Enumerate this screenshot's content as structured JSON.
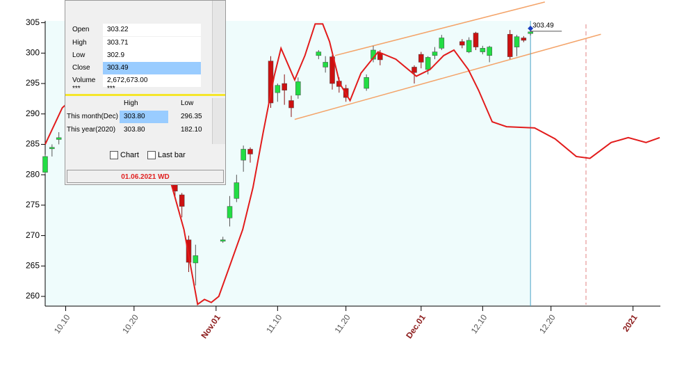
{
  "chart_data": {
    "type": "candlestick",
    "x": [
      7,
      8,
      9,
      26,
      27,
      28,
      29,
      33,
      34,
      35,
      36,
      37,
      40,
      41,
      42,
      43,
      44,
      47,
      48,
      49,
      50,
      51,
      54,
      55,
      56,
      61,
      62,
      63,
      64,
      65,
      68,
      69,
      70,
      71,
      72,
      75,
      76,
      77,
      78
    ],
    "open": [
      280.4,
      284.4,
      285.8,
      278.4,
      276.7,
      269.3,
      265.5,
      269.2,
      272.9,
      276.1,
      282.4,
      284.2,
      298.7,
      293.5,
      295.0,
      292.2,
      293.1,
      299.6,
      297.7,
      299.4,
      295.4,
      294.2,
      294.2,
      299.0,
      300.0,
      297.7,
      299.8,
      297.3,
      299.6,
      300.8,
      301.9,
      300.2,
      303.3,
      300.2,
      299.6,
      303.1,
      301.0,
      302.5,
      303.22
    ],
    "high": [
      283.3,
      285.0,
      287.0,
      279.0,
      277.0,
      270.0,
      268.5,
      269.8,
      276.5,
      280.0,
      284.8,
      284.5,
      299.5,
      295.0,
      296.5,
      293.0,
      296.0,
      300.5,
      299.5,
      299.7,
      296.0,
      294.8,
      296.5,
      301.2,
      300.5,
      298.0,
      300.2,
      299.5,
      301.0,
      303.0,
      302.3,
      302.6,
      303.5,
      301.2,
      301.2,
      303.8,
      303.0,
      302.8,
      303.71
    ],
    "low": [
      280.1,
      283.0,
      285.0,
      276.5,
      273.0,
      264.0,
      261.8,
      268.8,
      271.5,
      275.5,
      280.5,
      282.0,
      291.0,
      292.0,
      291.5,
      289.5,
      292.5,
      299.0,
      296.8,
      294.0,
      293.5,
      292.0,
      293.8,
      298.5,
      298.0,
      295.0,
      297.5,
      296.5,
      299.0,
      300.5,
      300.8,
      300.0,
      300.5,
      299.8,
      298.5,
      299.0,
      299.5,
      301.8,
      302.9
    ],
    "close": [
      283.0,
      284.5,
      286.1,
      277.3,
      274.8,
      265.6,
      266.7,
      269.3,
      274.8,
      278.7,
      284.2,
      283.4,
      291.8,
      294.7,
      293.9,
      291.0,
      295.3,
      300.2,
      298.5,
      295.0,
      294.5,
      292.7,
      296.0,
      300.5,
      298.9,
      296.8,
      298.5,
      299.3,
      300.2,
      302.5,
      301.3,
      302.1,
      301.0,
      300.8,
      301.0,
      299.4,
      302.7,
      302.1,
      303.49
    ],
    "up_color": "#22dd44",
    "down_color": "#cc1111",
    "ylim": [
      258.4,
      305.3
    ],
    "yticks": [
      260,
      265,
      270,
      275,
      280,
      285,
      290,
      295,
      300,
      305
    ],
    "xlim": [
      7,
      97
    ],
    "xticks": [
      {
        "value": 10,
        "label": "10.10",
        "color": "#555555"
      },
      {
        "value": 20,
        "label": "10.20",
        "color": "#555555"
      },
      {
        "value": 32,
        "label": "Nov.01",
        "color": "#8b1a1a"
      },
      {
        "value": 41,
        "label": "11.10",
        "color": "#555555"
      },
      {
        "value": 51,
        "label": "11.20",
        "color": "#555555"
      },
      {
        "value": 62,
        "label": "Dec.01",
        "color": "#8b1a1a"
      },
      {
        "value": 71,
        "label": "12.10",
        "color": "#555555"
      },
      {
        "value": 81,
        "label": "12.20",
        "color": "#555555"
      },
      {
        "value": 93,
        "label": "2021",
        "color": "#8b1a1a"
      }
    ],
    "trend": {
      "color": "#e21b1b",
      "x": [
        7.0,
        9.5,
        11.5,
        13.6,
        16.6,
        20.7,
        23.2,
        24.7,
        27.3,
        29.3,
        30.3,
        31.3,
        32.4,
        33.9,
        35.9,
        37.4,
        38.9,
        40.5,
        41.5,
        43.5,
        45.0,
        46.5,
        47.6,
        48.6,
        50.1,
        51.6,
        53.2,
        55.7,
        58.3,
        61.3,
        63.3,
        65.3,
        66.8,
        68.9,
        70.4,
        72.4,
        74.5,
        78.6,
        81.6,
        84.7,
        86.7,
        89.8,
        92.3,
        94.9,
        96.9
      ],
      "y": [
        285,
        291,
        293,
        294,
        292,
        288,
        284,
        281.5,
        271,
        258.7,
        259.5,
        259,
        260,
        264.7,
        271,
        277.9,
        287,
        296.2,
        300.8,
        295.6,
        299.6,
        304.8,
        304.8,
        301.9,
        295,
        292.2,
        296.7,
        300.2,
        299,
        296.2,
        297.3,
        299.6,
        300.5,
        297.3,
        293.9,
        288.7,
        287.9,
        287.7,
        285.9,
        283,
        282.7,
        285.3,
        286.1,
        285.3,
        286.1
      ]
    },
    "channel": {
      "color": "#f4a46a",
      "upper": {
        "x": [
          49.4,
          80.1
        ],
        "y": [
          299.6,
          308.4
        ]
      },
      "lower": {
        "x": [
          43.5,
          88.3
        ],
        "y": [
          289.1,
          303.1
        ]
      }
    }
  },
  "info_panel": {
    "open_label": "Open",
    "high_label": "High",
    "low_label": "Low",
    "close_label": "Close",
    "volume_label": "Volume",
    "volume": "2,672,673.00",
    "more_label": "***",
    "more_value": "***",
    "header": [
      "High",
      "Low"
    ],
    "rows": [
      {
        "label": "This month(Dec)",
        "high": "303.80",
        "low": "296.35"
      },
      {
        "label": "This year(2020)",
        "high": "303.80",
        "low": "182.10"
      }
    ],
    "checkboxes": [
      "Chart",
      "Last bar"
    ],
    "date": "01.06.2021 WD"
  }
}
